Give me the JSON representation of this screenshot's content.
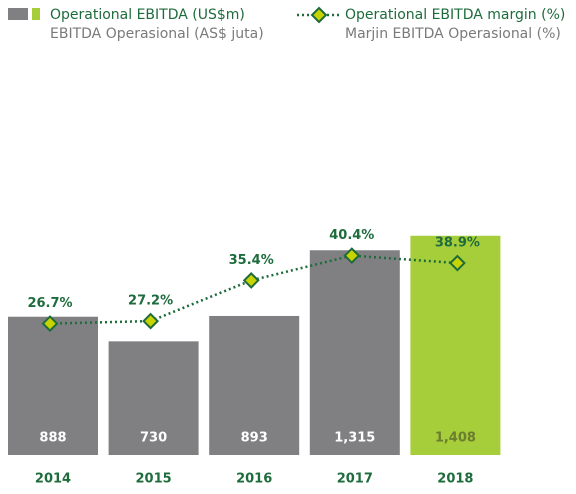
{
  "chart_data": {
    "type": "bar_line",
    "categories": [
      "2014",
      "2015",
      "2016",
      "2017",
      "2018"
    ],
    "series": [
      {
        "name": "Operational EBITDA (US$m)",
        "name_alt": "EBITDA Operasional (AS$ juta)",
        "type": "bar",
        "colors": [
          "#808083",
          "#808083",
          "#808083",
          "#808083",
          "#a6cd3a"
        ],
        "values": [
          888,
          730,
          893,
          1315,
          1408
        ],
        "value_labels": [
          "888",
          "730",
          "893",
          "1,315",
          "1,408"
        ]
      },
      {
        "name": "Operational EBITDA margin (%)",
        "name_alt": "Marjin EBITDA Operasional (%)",
        "type": "line",
        "color": "#1e6b3c",
        "marker_color": "#c8d400",
        "values": [
          26.7,
          27.2,
          35.4,
          40.4,
          38.9
        ],
        "value_labels": [
          "26.7%",
          "27.2%",
          "35.4%",
          "40.4%",
          "38.9%"
        ]
      }
    ]
  }
}
